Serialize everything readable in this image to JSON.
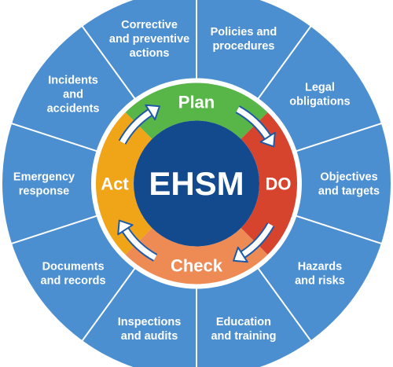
{
  "center": {
    "label": "EHSM",
    "color": "#134a8e"
  },
  "ring_colors": {
    "outer": "#4b8fd0",
    "divider": "#ffffff",
    "inner_gap": "#ffffff"
  },
  "phases": [
    {
      "id": "plan",
      "label": "Plan",
      "color": "#58b548"
    },
    {
      "id": "do",
      "label": "DO",
      "color": "#d7442e"
    },
    {
      "id": "check",
      "label": "Check",
      "color": "#ee8b55"
    },
    {
      "id": "act",
      "label": "Act",
      "color": "#f0a418"
    }
  ],
  "segments": [
    {
      "id": "policies",
      "lines": [
        "Policies and",
        "procedures"
      ]
    },
    {
      "id": "legal",
      "lines": [
        "Legal",
        "obligations"
      ]
    },
    {
      "id": "objectives",
      "lines": [
        "Objectives",
        "and targets"
      ]
    },
    {
      "id": "hazards",
      "lines": [
        "Hazards",
        "and risks"
      ]
    },
    {
      "id": "education",
      "lines": [
        "Education",
        "and training"
      ]
    },
    {
      "id": "inspections",
      "lines": [
        "Inspections",
        "and audits"
      ]
    },
    {
      "id": "documents",
      "lines": [
        "Documents",
        "and records"
      ]
    },
    {
      "id": "emergency",
      "lines": [
        "Emergency",
        "response"
      ]
    },
    {
      "id": "incidents",
      "lines": [
        "Incidents",
        "and",
        "accidents"
      ]
    },
    {
      "id": "corrective",
      "lines": [
        "Corrective",
        "and preventive",
        "actions"
      ]
    }
  ],
  "arrows": [
    {
      "id": "act-to-plan",
      "icon": "curved-arrow-icon"
    },
    {
      "id": "plan-to-do",
      "icon": "curved-arrow-icon"
    },
    {
      "id": "do-to-check",
      "icon": "curved-arrow-icon"
    },
    {
      "id": "check-to-act",
      "icon": "curved-arrow-icon"
    }
  ]
}
